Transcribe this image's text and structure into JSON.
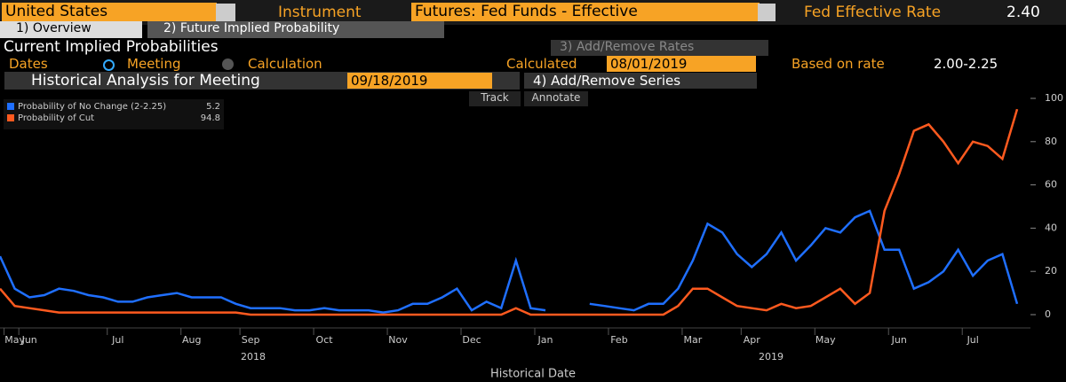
{
  "toolbar": {
    "country": "United States",
    "instrument_label": "Instrument",
    "instrument": "Futures: Fed Funds - Effective",
    "rate_label": "Fed Effective Rate",
    "rate_value": "2.40"
  },
  "tabs": [
    "1) Overview",
    "2) Future Implied Probability"
  ],
  "panel": {
    "title": "Current Implied Probabilities",
    "add_rates": "3) Add/Remove Rates",
    "dates_label": "Dates",
    "option_meeting": "Meeting",
    "option_calculation": "Calculation",
    "calculated_label": "Calculated",
    "calculated_date": "08/01/2019",
    "based_label": "Based on rate",
    "based_value": "2.00-2.25",
    "analysis_label": "Historical Analysis for Meeting",
    "meeting_date": "09/18/2019",
    "add_series": "4) Add/Remove Series",
    "track": "Track",
    "annotate": "Annotate"
  },
  "chart_data": {
    "type": "line",
    "xlabel": "Historical Date",
    "years": [
      "2018",
      "2019"
    ],
    "categories": [
      null,
      "May",
      "Jun",
      null,
      null,
      null,
      null,
      null,
      "Jul",
      null,
      null,
      null,
      null,
      "Aug",
      null,
      null,
      null,
      "Sep",
      null,
      null,
      null,
      null,
      "Oct",
      null,
      null,
      null,
      null,
      "Nov",
      null,
      null,
      null,
      null,
      "Dec",
      null,
      null,
      null,
      null,
      "Jan",
      null,
      null,
      null,
      null,
      "Feb",
      null,
      null,
      null,
      null,
      "Mar",
      null,
      null,
      null,
      "Apr",
      null,
      null,
      null,
      null,
      "May",
      null,
      null,
      null,
      null,
      "Jun",
      null,
      null,
      null,
      null,
      "Jul",
      null,
      null,
      null
    ],
    "series": [
      {
        "name": "Probability of No Change (2-2.25)",
        "last": "5.2",
        "color": "#1f6fff",
        "values": [
          27,
          12,
          8,
          9,
          12,
          11,
          9,
          8,
          6,
          6,
          8,
          9,
          10,
          8,
          8,
          8,
          5,
          3,
          3,
          3,
          2,
          2,
          3,
          2,
          2,
          2,
          1,
          2,
          5,
          5,
          8,
          12,
          2,
          6,
          3,
          25,
          3,
          2,
          null,
          null,
          5,
          4,
          3,
          2,
          5,
          5,
          12,
          25,
          42,
          38,
          28,
          22,
          28,
          38,
          25,
          32,
          40,
          38,
          45,
          48,
          30,
          30,
          12,
          15,
          20,
          30,
          18,
          25,
          28,
          5
        ]
      },
      {
        "name": "Probability of Cut",
        "last": "94.8",
        "color": "#ff5a1f",
        "values": [
          12,
          4,
          3,
          2,
          1,
          1,
          1,
          1,
          1,
          1,
          1,
          1,
          1,
          1,
          1,
          1,
          1,
          0,
          0,
          0,
          0,
          0,
          0,
          0,
          0,
          0,
          0,
          0,
          0,
          0,
          0,
          0,
          0,
          0,
          0,
          3,
          0,
          0,
          0,
          0,
          0,
          0,
          0,
          0,
          0,
          0,
          4,
          12,
          12,
          8,
          4,
          3,
          2,
          5,
          3,
          4,
          8,
          12,
          5,
          10,
          48,
          65,
          85,
          88,
          80,
          70,
          80,
          78,
          72,
          95
        ]
      }
    ],
    "ylim": [
      0,
      100
    ],
    "yticks": [
      0,
      20,
      40,
      60,
      80,
      100
    ]
  }
}
